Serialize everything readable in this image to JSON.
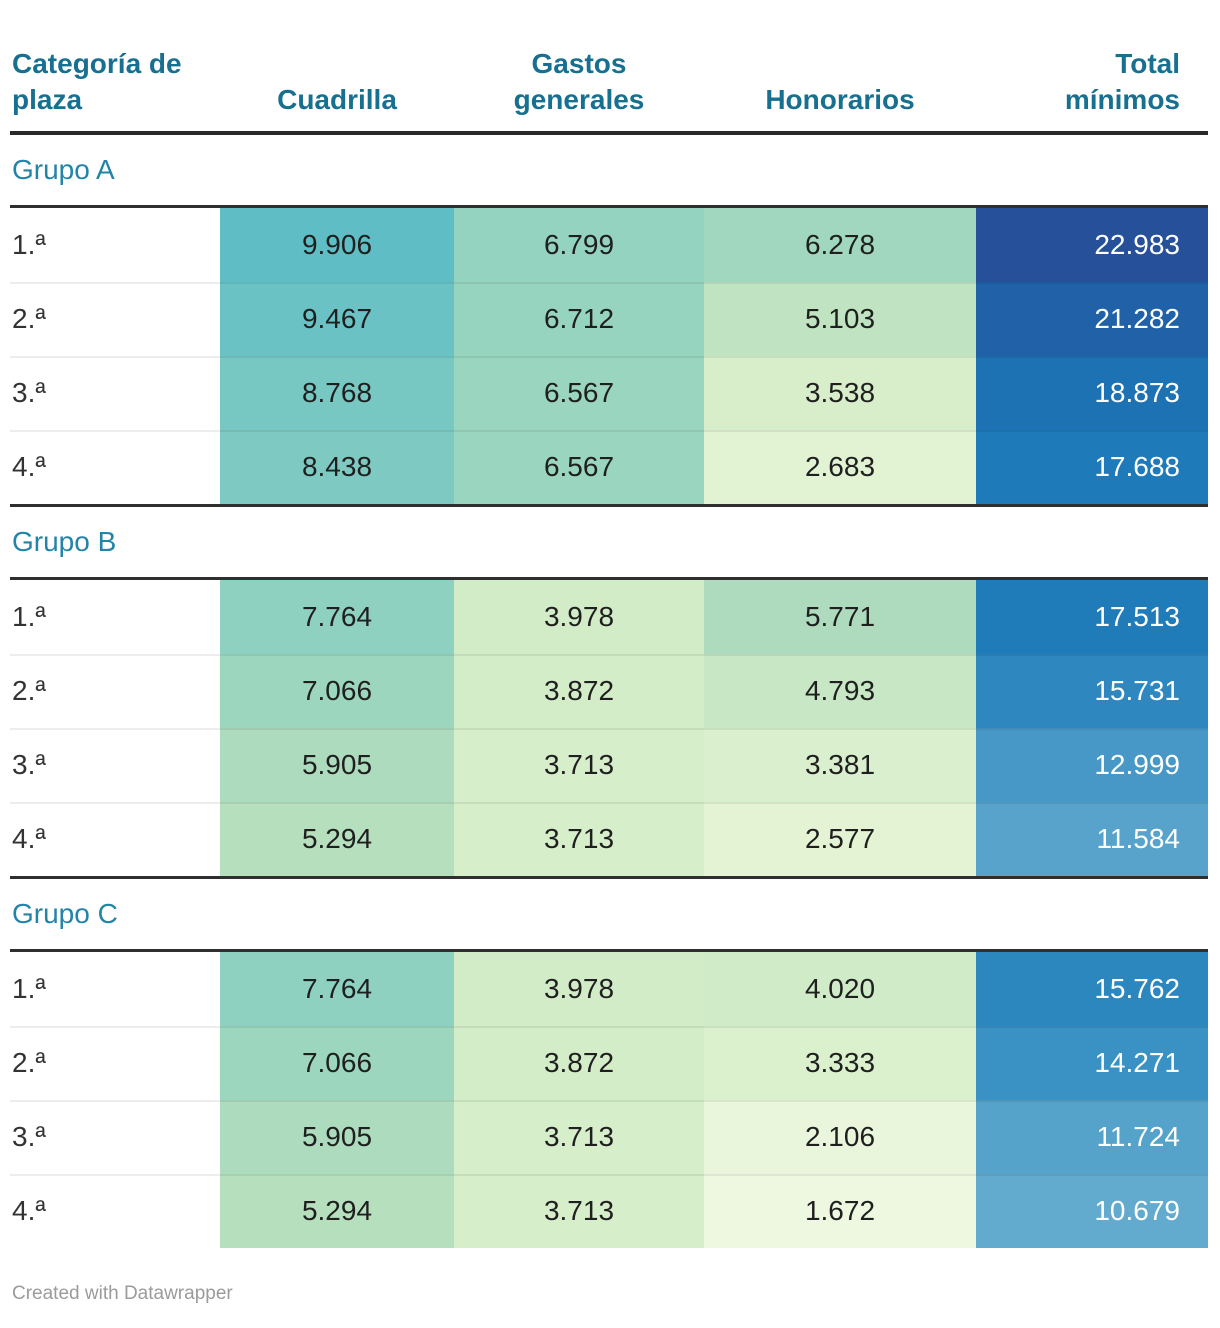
{
  "header": {
    "columns": [
      {
        "label": "Categoría de\nplaza"
      },
      {
        "label": "Cuadrilla"
      },
      {
        "label": "Gastos\ngenerales"
      },
      {
        "label": "Honorarios"
      },
      {
        "label": "Total\nmínimos"
      }
    ]
  },
  "theme": {
    "header_text_color": "#17708f",
    "group_label_color": "#2484a8",
    "rule_color": "#2f2f2f",
    "value_text_color": "#1f1f1f",
    "total_text_color": "#ffffff",
    "footer_text_color": "#9b9b9b"
  },
  "groups": [
    {
      "label": "Grupo A",
      "rows": [
        {
          "category": "1.ª",
          "cuadrilla": {
            "value": "9.906",
            "bg": "#5fbec5"
          },
          "gastos": {
            "value": "6.799",
            "bg": "#94d3c0"
          },
          "honorarios": {
            "value": "6.278",
            "bg": "#a2d7bf"
          },
          "total": {
            "value": "22.983",
            "bg": "#26509a"
          }
        },
        {
          "category": "2.ª",
          "cuadrilla": {
            "value": "9.467",
            "bg": "#6ac2c4"
          },
          "gastos": {
            "value": "6.712",
            "bg": "#96d4c0"
          },
          "honorarios": {
            "value": "5.103",
            "bg": "#c0e4c2"
          },
          "total": {
            "value": "21.282",
            "bg": "#2061a7"
          }
        },
        {
          "category": "3.ª",
          "cuadrilla": {
            "value": "8.768",
            "bg": "#77c7c3"
          },
          "gastos": {
            "value": "6.567",
            "bg": "#99d5bf"
          },
          "honorarios": {
            "value": "3.538",
            "bg": "#d8eecb"
          },
          "total": {
            "value": "18.873",
            "bg": "#1d72b3"
          }
        },
        {
          "category": "4.ª",
          "cuadrilla": {
            "value": "8.438",
            "bg": "#7ecac2"
          },
          "gastos": {
            "value": "6.567",
            "bg": "#99d5bf"
          },
          "honorarios": {
            "value": "2.683",
            "bg": "#e2f3d3"
          },
          "total": {
            "value": "17.688",
            "bg": "#1e7ab8"
          }
        }
      ]
    },
    {
      "label": "Grupo B",
      "rows": [
        {
          "category": "1.ª",
          "cuadrilla": {
            "value": "7.764",
            "bg": "#8ed1c1"
          },
          "gastos": {
            "value": "3.978",
            "bg": "#d2ecc8"
          },
          "honorarios": {
            "value": "5.771",
            "bg": "#aedbbe"
          },
          "total": {
            "value": "17.513",
            "bg": "#207cb9"
          }
        },
        {
          "category": "2.ª",
          "cuadrilla": {
            "value": "7.066",
            "bg": "#9cd6bf"
          },
          "gastos": {
            "value": "3.872",
            "bg": "#d4edc9"
          },
          "honorarios": {
            "value": "4.793",
            "bg": "#c7e7c5"
          },
          "total": {
            "value": "15.731",
            "bg": "#2e87bf"
          }
        },
        {
          "category": "3.ª",
          "cuadrilla": {
            "value": "5.905",
            "bg": "#addbbe"
          },
          "gastos": {
            "value": "3.713",
            "bg": "#d6eeca"
          },
          "honorarios": {
            "value": "3.381",
            "bg": "#daefcd"
          },
          "total": {
            "value": "12.999",
            "bg": "#4798c7"
          }
        },
        {
          "category": "4.ª",
          "cuadrilla": {
            "value": "5.294",
            "bg": "#b5dfbd"
          },
          "gastos": {
            "value": "3.713",
            "bg": "#d6eeca"
          },
          "honorarios": {
            "value": "2.577",
            "bg": "#e4f3d4"
          },
          "total": {
            "value": "11.584",
            "bg": "#57a3cb"
          }
        }
      ]
    },
    {
      "label": "Grupo C",
      "rows": [
        {
          "category": "1.ª",
          "cuadrilla": {
            "value": "7.764",
            "bg": "#8ed1c1"
          },
          "gastos": {
            "value": "3.978",
            "bg": "#d2ecc8"
          },
          "honorarios": {
            "value": "4.020",
            "bg": "#cfebc7"
          },
          "total": {
            "value": "15.762",
            "bg": "#2d87bf"
          }
        },
        {
          "category": "2.ª",
          "cuadrilla": {
            "value": "7.066",
            "bg": "#9cd6bf"
          },
          "gastos": {
            "value": "3.872",
            "bg": "#d4edc9"
          },
          "honorarios": {
            "value": "3.333",
            "bg": "#dbf0cd"
          },
          "total": {
            "value": "14.271",
            "bg": "#3a91c3"
          }
        },
        {
          "category": "3.ª",
          "cuadrilla": {
            "value": "5.905",
            "bg": "#addbbe"
          },
          "gastos": {
            "value": "3.713",
            "bg": "#d6eeca"
          },
          "honorarios": {
            "value": "2.106",
            "bg": "#e9f6db"
          },
          "total": {
            "value": "11.724",
            "bg": "#55a2ca"
          }
        },
        {
          "category": "4.ª",
          "cuadrilla": {
            "value": "5.294",
            "bg": "#b5dfbd"
          },
          "gastos": {
            "value": "3.713",
            "bg": "#d6eeca"
          },
          "honorarios": {
            "value": "1.672",
            "bg": "#eef8e0"
          },
          "total": {
            "value": "10.679",
            "bg": "#63abce"
          }
        }
      ]
    }
  ],
  "footer": {
    "credit": "Created with Datawrapper"
  },
  "chart_data": {
    "type": "table",
    "columns": [
      "Categoría de plaza",
      "Cuadrilla",
      "Gastos generales",
      "Honorarios",
      "Total mínimos"
    ],
    "number_format": "es-ES (dot as thousands separator)",
    "heatmap": true,
    "groups": [
      {
        "name": "Grupo A",
        "rows": [
          [
            "1.ª",
            9906,
            6799,
            6278,
            22983
          ],
          [
            "2.ª",
            9467,
            6712,
            5103,
            21282
          ],
          [
            "3.ª",
            8768,
            6567,
            3538,
            18873
          ],
          [
            "4.ª",
            8438,
            6567,
            2683,
            17688
          ]
        ]
      },
      {
        "name": "Grupo B",
        "rows": [
          [
            "1.ª",
            7764,
            3978,
            5771,
            17513
          ],
          [
            "2.ª",
            7066,
            3872,
            4793,
            15731
          ],
          [
            "3.ª",
            5905,
            3713,
            3381,
            12999
          ],
          [
            "4.ª",
            5294,
            3713,
            2577,
            11584
          ]
        ]
      },
      {
        "name": "Grupo C",
        "rows": [
          [
            "1.ª",
            7764,
            3978,
            4020,
            15762
          ],
          [
            "2.ª",
            7066,
            3872,
            3333,
            14271
          ],
          [
            "3.ª",
            5905,
            3713,
            2106,
            11724
          ],
          [
            "4.ª",
            5294,
            3713,
            1672,
            10679
          ]
        ]
      }
    ]
  }
}
